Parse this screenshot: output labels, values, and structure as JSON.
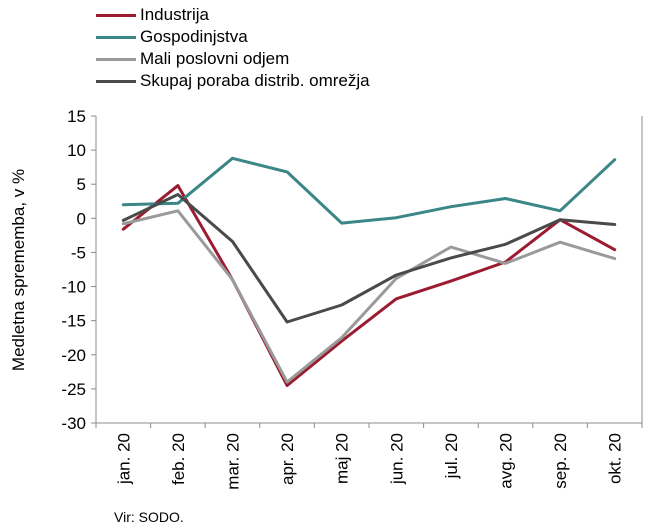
{
  "chart_data": {
    "type": "line",
    "title": "",
    "ylabel": "Medletna sprememba, v %",
    "xlabel": "",
    "categories": [
      "jan. 20",
      "feb. 20",
      "mar. 20",
      "apr. 20",
      "maj 20",
      "jun. 20",
      "jul. 20",
      "avg. 20",
      "sep. 20",
      "okt. 20"
    ],
    "ylim": [
      -30,
      15
    ],
    "yticks": [
      15,
      10,
      5,
      0,
      -5,
      -10,
      -15,
      -20,
      -25,
      -30
    ],
    "grid": false,
    "legend_position": "top-left",
    "series": [
      {
        "name": "Industrija",
        "color": "#9b1b30",
        "values": [
          -1.6,
          4.8,
          -9.0,
          -24.5,
          -18.0,
          -11.8,
          -9.2,
          -6.4,
          -0.2,
          -4.6
        ]
      },
      {
        "name": "Gospodinjstva",
        "color": "#3b8686",
        "values": [
          2.0,
          2.2,
          8.8,
          6.8,
          -0.7,
          0.1,
          1.7,
          2.9,
          1.1,
          8.6
        ]
      },
      {
        "name": "Mali poslovni odjem",
        "color": "#9a9a9a",
        "values": [
          -0.8,
          1.1,
          -9.0,
          -24.0,
          -17.5,
          -8.8,
          -4.2,
          -6.6,
          -3.5,
          -5.9
        ]
      },
      {
        "name": "Skupaj poraba distrib. omrežja",
        "color": "#4a4a4a",
        "values": [
          -0.3,
          3.5,
          -3.4,
          -15.2,
          -12.7,
          -8.3,
          -5.8,
          -3.8,
          -0.2,
          -0.9
        ]
      }
    ]
  },
  "source": "Vir: SODO."
}
